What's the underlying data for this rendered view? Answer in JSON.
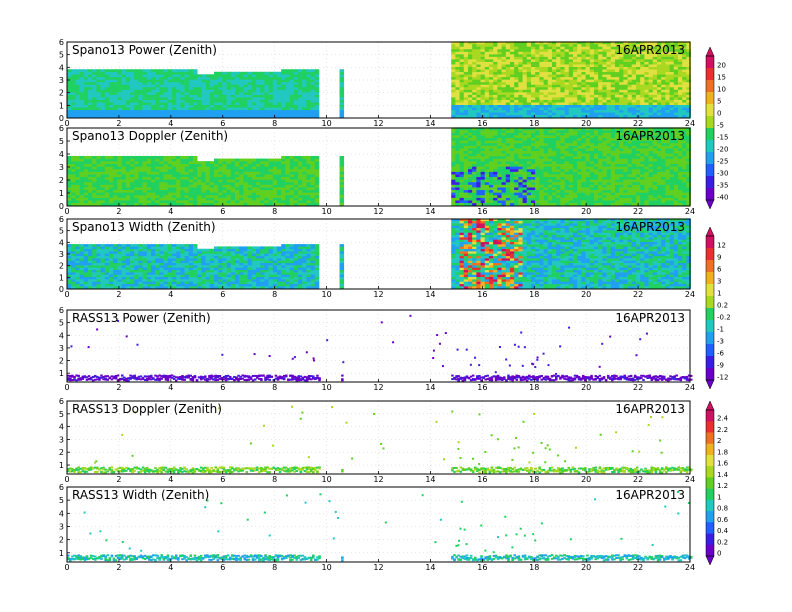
{
  "colors": {
    "rainbow": [
      "#6a00c8",
      "#3a1fe0",
      "#2060ff",
      "#20a0f0",
      "#20c8c0",
      "#20d060",
      "#60d020",
      "#a8d820",
      "#e0e040",
      "#f0b020",
      "#f07020",
      "#e83030",
      "#d01060"
    ]
  },
  "chart_data": [
    {
      "type": "heatmap",
      "title": "Spano13 Power (Zenith)",
      "date": "16APR2013",
      "x_ticks": [
        "0",
        "2",
        "4",
        "6",
        "8",
        "10",
        "12",
        "14",
        "16",
        "18",
        "20",
        "22",
        "24"
      ],
      "y_ticks": [
        "0",
        "1",
        "2",
        "3",
        "4",
        "5",
        "6"
      ],
      "xlim": [
        0,
        24
      ],
      "ylim": [
        0,
        6
      ],
      "segments": [
        {
          "x": [
            0,
            9.7
          ],
          "top_height": 3.7
        },
        {
          "x": [
            10.5,
            10.6
          ],
          "top_height": 3.7
        },
        {
          "x": [
            14.8,
            24
          ],
          "top_height": 6.0
        }
      ],
      "dominant_values": {
        "low_hours": "-15 to -20",
        "late_hours": "-5 to 5"
      }
    },
    {
      "type": "heatmap",
      "title": "Spano13 Doppler (Zenith)",
      "date": "16APR2013",
      "x_ticks": [
        "0",
        "2",
        "4",
        "6",
        "8",
        "10",
        "12",
        "14",
        "16",
        "18",
        "20",
        "22",
        "24"
      ],
      "y_ticks": [
        "0",
        "1",
        "2",
        "3",
        "4",
        "5",
        "6"
      ],
      "xlim": [
        0,
        24
      ],
      "ylim": [
        0,
        6
      ],
      "segments": [
        {
          "x": [
            0,
            9.7
          ],
          "top_height": 3.7
        },
        {
          "x": [
            10.5,
            10.6
          ],
          "top_height": 3.7
        },
        {
          "x": [
            14.8,
            24
          ],
          "top_height": 6.0
        }
      ]
    },
    {
      "type": "heatmap",
      "title": "Spano13 Width (Zenith)",
      "date": "16APR2013",
      "x_ticks": [
        "0",
        "2",
        "4",
        "6",
        "8",
        "10",
        "12",
        "14",
        "16",
        "18",
        "20",
        "22",
        "24"
      ],
      "y_ticks": [
        "0",
        "1",
        "2",
        "3",
        "4",
        "5",
        "6"
      ],
      "xlim": [
        0,
        24
      ],
      "ylim": [
        0,
        6
      ],
      "segments": [
        {
          "x": [
            0,
            9.7
          ],
          "top_height": 3.7
        },
        {
          "x": [
            10.5,
            10.6
          ],
          "top_height": 3.7
        },
        {
          "x": [
            14.8,
            24
          ],
          "top_height": 6.0
        }
      ],
      "hotspot_hours": [
        15,
        17.5
      ]
    },
    {
      "type": "scatter",
      "title": "RASS13 Power (Zenith)",
      "date": "16APR2013",
      "x_ticks": [
        "0",
        "2",
        "4",
        "6",
        "8",
        "10",
        "12",
        "14",
        "16",
        "18",
        "20",
        "22",
        "24"
      ],
      "y_ticks": [
        "1",
        "2",
        "3",
        "4",
        "5",
        "6"
      ],
      "xlim": [
        0,
        24
      ],
      "ylim": [
        0.3,
        6
      ],
      "band_height": [
        0.5,
        0.9
      ]
    },
    {
      "type": "scatter",
      "title": "RASS13 Doppler (Zenith)",
      "date": "16APR2013",
      "x_ticks": [
        "0",
        "2",
        "4",
        "6",
        "8",
        "10",
        "12",
        "14",
        "16",
        "18",
        "20",
        "22",
        "24"
      ],
      "y_ticks": [
        "1",
        "2",
        "3",
        "4",
        "5",
        "6"
      ],
      "xlim": [
        0,
        24
      ],
      "ylim": [
        0.3,
        6
      ],
      "band_height": [
        0.5,
        0.9
      ]
    },
    {
      "type": "scatter",
      "title": "RASS13 Width (Zenith)",
      "date": "16APR2013",
      "x_ticks": [
        "0",
        "2",
        "4",
        "6",
        "8",
        "10",
        "12",
        "14",
        "16",
        "18",
        "20",
        "22",
        "24"
      ],
      "y_ticks": [
        "1",
        "2",
        "3",
        "4",
        "5",
        "6"
      ],
      "xlim": [
        0,
        24
      ],
      "ylim": [
        0.3,
        6
      ],
      "band_height": [
        0.5,
        0.9
      ]
    }
  ],
  "colorbars": [
    {
      "labels": [
        "20",
        "15",
        "10",
        "5",
        "0",
        "-5",
        "-15",
        "-20",
        "-25",
        "-30",
        "-35",
        "-40"
      ]
    },
    {
      "labels": [
        "12",
        "9",
        "6",
        "3",
        "1",
        "0.2",
        "-0.2",
        "-1",
        "-3",
        "-6",
        "-9",
        "-12"
      ]
    },
    {
      "labels": [
        "2.4",
        "2.2",
        "2",
        "1.8",
        "1.6",
        "1.4",
        "1.2",
        "1",
        "0.8",
        "0.6",
        "0.4",
        "0.2",
        "0"
      ]
    }
  ]
}
